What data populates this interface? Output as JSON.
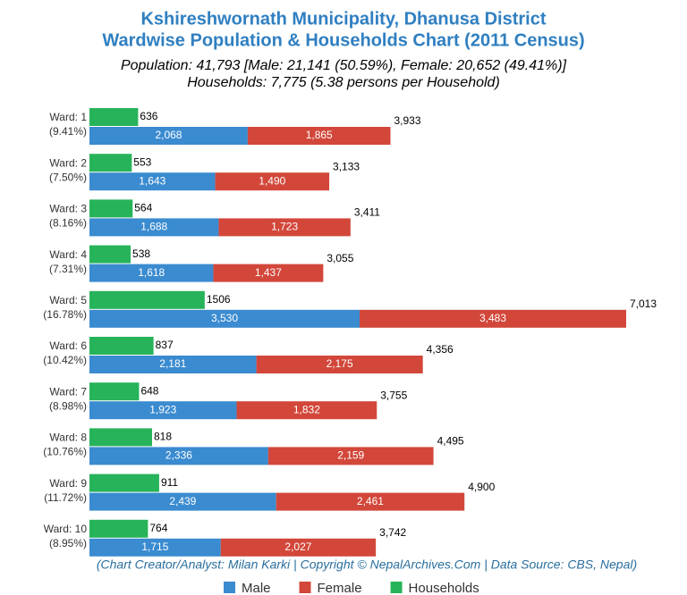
{
  "chart_data": {
    "type": "bar",
    "orientation": "horizontal",
    "title": [
      "Kshireshwornath Municipality, Dhanusa District",
      "Wardwise Population & Households Chart (2011 Census)"
    ],
    "subtitle": [
      "Population: 41,793 [Male: 21,141 (50.59%), Female: 20,652 (49.41%)]",
      "Households: 7,775 (5.38 persons per Household)"
    ],
    "footer": "(Chart Creator/Analyst: Milan Karki | Copyright © NepalArchives.Com | Data Source: CBS, Nepal)",
    "categories": [
      "Ward: 1",
      "Ward: 2",
      "Ward: 3",
      "Ward: 4",
      "Ward: 5",
      "Ward: 6",
      "Ward: 7",
      "Ward: 8",
      "Ward: 9",
      "Ward: 10"
    ],
    "category_notes": [
      "(9.41%)",
      "(7.50%)",
      "(8.16%)",
      "(7.31%)",
      "(16.78%)",
      "(10.42%)",
      "(8.98%)",
      "(10.76%)",
      "(11.72%)",
      "(8.95%)"
    ],
    "series": [
      {
        "name": "Male",
        "color": "#3a8bd0",
        "stack": "population",
        "values": [
          2068,
          1643,
          1688,
          1618,
          3530,
          2181,
          1923,
          2336,
          2439,
          1715
        ],
        "value_labels": [
          "2,068",
          "1,643",
          "1,688",
          "1,618",
          "3,530",
          "2,181",
          "1,923",
          "2,336",
          "2,439",
          "1,715"
        ]
      },
      {
        "name": "Female",
        "color": "#d2473a",
        "stack": "population",
        "values": [
          1865,
          1490,
          1723,
          1437,
          3483,
          2175,
          1832,
          2159,
          2461,
          2027
        ],
        "value_labels": [
          "1,865",
          "1,490",
          "1,723",
          "1,437",
          "3,483",
          "2,175",
          "1,832",
          "2,159",
          "2,461",
          "2,027"
        ]
      },
      {
        "name": "Households",
        "color": "#27b35a",
        "stack": "households",
        "values": [
          636,
          553,
          564,
          538,
          1506,
          837,
          648,
          818,
          911,
          764
        ]
      }
    ],
    "totals": {
      "values": [
        3933,
        3133,
        3411,
        3055,
        7013,
        4356,
        3755,
        4495,
        4900,
        3742
      ],
      "value_labels": [
        "3,933",
        "3,133",
        "3,411",
        "3,055",
        "7,013",
        "4,356",
        "3,755",
        "4,495",
        "4,900",
        "3,742"
      ]
    }
  }
}
